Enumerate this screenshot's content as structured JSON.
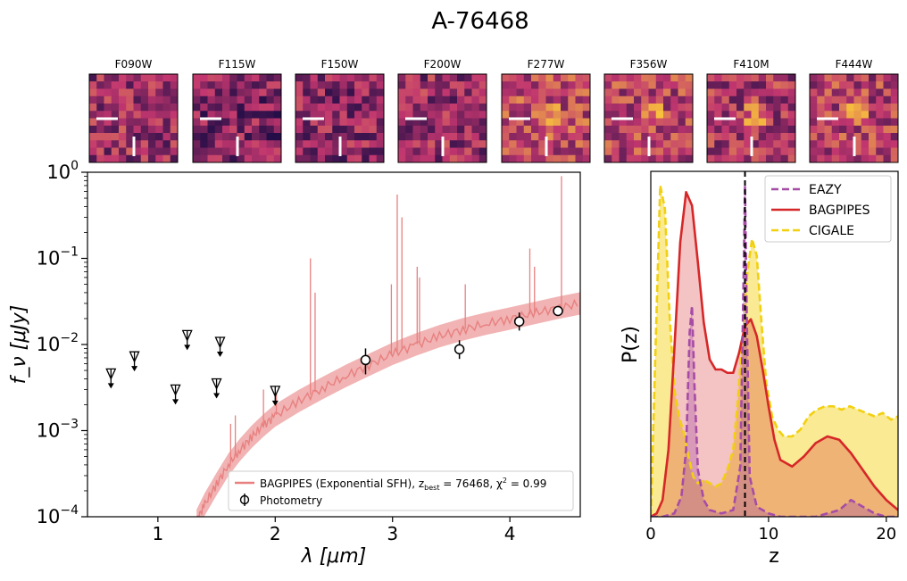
{
  "figure": {
    "title": "A-76468",
    "cutouts": [
      {
        "filter": "F090W",
        "intensity": 0.4
      },
      {
        "filter": "F115W",
        "intensity": 0.3
      },
      {
        "filter": "F150W",
        "intensity": 0.35
      },
      {
        "filter": "F200W",
        "intensity": 0.38
      },
      {
        "filter": "F277W",
        "intensity": 0.55
      },
      {
        "filter": "F356W",
        "intensity": 0.52
      },
      {
        "filter": "F410M",
        "intensity": 0.45
      },
      {
        "filter": "F444W",
        "intensity": 0.5
      }
    ],
    "colors": {
      "bagpipes": "#d62728",
      "bagpipes_sed": "#e88080",
      "eazy": "#a64ca6",
      "cigale": "#f2d00f",
      "cutout_dark": "#1c0b45",
      "cutout_mid": "#c1366f",
      "cutout_bright": "#f9c23c"
    }
  },
  "chart_data": [
    {
      "type": "scatter",
      "panel": "sed",
      "xlabel": "λ [μm]",
      "ylabel": "f_ν [μJy]",
      "xscale": "linear",
      "yscale": "log",
      "xlim": [
        0.4,
        4.6
      ],
      "ylim": [
        0.0001,
        1.0
      ],
      "xticks": [
        1,
        2,
        3,
        4
      ],
      "yticks": [
        0.0001,
        0.001,
        0.01,
        0.1,
        1.0
      ],
      "ytick_labels": [
        {
          "base": "10",
          "exp": "−4"
        },
        {
          "base": "10",
          "exp": "−3"
        },
        {
          "base": "10",
          "exp": "−2"
        },
        {
          "base": "10",
          "exp": "−1"
        },
        {
          "base": "10",
          "exp": "0"
        }
      ],
      "legend_position": "bottom-right",
      "legend": {
        "model_label": "BAGPIPES (Exponential SFH), z",
        "model_sub": "best",
        "model_rest": " = 76468, χ",
        "model_sup": "2",
        "model_end": " = 0.99",
        "points_label": "Photometry"
      },
      "series": [
        {
          "name": "Photometry",
          "kind": "detection",
          "points": [
            {
              "x": 2.77,
              "y": 0.0066,
              "ylo": 0.0045,
              "yhi": 0.009
            },
            {
              "x": 3.57,
              "y": 0.0088,
              "ylo": 0.0068,
              "yhi": 0.0112
            },
            {
              "x": 4.08,
              "y": 0.0185,
              "ylo": 0.0145,
              "yhi": 0.0235
            },
            {
              "x": 4.41,
              "y": 0.0245,
              "ylo": 0.0215,
              "yhi": 0.028
            }
          ]
        },
        {
          "name": "Photometry",
          "kind": "upper_limit",
          "points": [
            {
              "x": 0.6,
              "y": 0.0043
            },
            {
              "x": 0.8,
              "y": 0.0068
            },
            {
              "x": 1.15,
              "y": 0.0028
            },
            {
              "x": 1.25,
              "y": 0.012
            },
            {
              "x": 1.5,
              "y": 0.0033
            },
            {
              "x": 1.53,
              "y": 0.01
            },
            {
              "x": 2.0,
              "y": 0.0027
            }
          ]
        },
        {
          "name": "BAGPIPES (Exponential SFH)",
          "kind": "model_continuum",
          "x": [
            1.33,
            1.4,
            1.5,
            1.6,
            1.7,
            1.8,
            1.9,
            2.0,
            2.2,
            2.4,
            2.6,
            2.8,
            3.0,
            3.2,
            3.4,
            3.6,
            3.8,
            4.0,
            4.2,
            4.4,
            4.6
          ],
          "y": [
            9e-05,
            0.00014,
            0.00024,
            0.0004,
            0.0006,
            0.00085,
            0.00115,
            0.0015,
            0.0022,
            0.0031,
            0.0043,
            0.0058,
            0.0078,
            0.01,
            0.0125,
            0.015,
            0.0175,
            0.02,
            0.023,
            0.0265,
            0.03
          ]
        },
        {
          "name": "BAGPIPES (Exponential SFH)",
          "kind": "emission_lines",
          "x": [
            1.62,
            1.66,
            2.01,
            2.3,
            2.34,
            3.04,
            3.08,
            3.21,
            3.23,
            3.62,
            4.17,
            4.21,
            4.44,
            2.99,
            1.9
          ],
          "y": [
            0.0012,
            0.0015,
            0.003,
            0.1,
            0.04,
            0.55,
            0.3,
            0.08,
            0.06,
            0.05,
            0.13,
            0.08,
            0.9,
            0.05,
            0.003
          ]
        }
      ]
    },
    {
      "type": "area",
      "panel": "pz",
      "xlabel": "z",
      "ylabel": "P(z)",
      "xlim": [
        0,
        21
      ],
      "ylim": [
        0,
        1.0
      ],
      "xticks": [
        0,
        10,
        20
      ],
      "vline_z": 8.0,
      "legend_position": "top-right",
      "series": [
        {
          "name": "EAZY",
          "style": "dashed",
          "x": [
            0,
            1,
            2,
            2.6,
            3.0,
            3.3,
            3.5,
            3.7,
            4.0,
            4.5,
            5,
            6,
            7,
            7.6,
            7.85,
            8.0,
            8.15,
            8.4,
            9,
            10,
            11,
            12,
            14,
            16,
            17,
            18,
            19,
            20,
            21
          ],
          "y": [
            0.0,
            0.0,
            0.01,
            0.06,
            0.2,
            0.55,
            0.63,
            0.4,
            0.14,
            0.05,
            0.02,
            0.01,
            0.02,
            0.15,
            0.65,
            0.99,
            0.6,
            0.12,
            0.03,
            0.01,
            0.0,
            0.0,
            0.0,
            0.02,
            0.05,
            0.03,
            0.01,
            0.0,
            0.0
          ]
        },
        {
          "name": "BAGPIPES",
          "style": "solid",
          "x": [
            0,
            0.5,
            1,
            1.5,
            2,
            2.5,
            3,
            3.5,
            4,
            4.5,
            5,
            5.5,
            6,
            6.5,
            7,
            7.5,
            8,
            8.5,
            9,
            9.5,
            10,
            10.5,
            11,
            12,
            13,
            14,
            15,
            16,
            17,
            18,
            19,
            20,
            21
          ],
          "y": [
            0.0,
            0.01,
            0.05,
            0.2,
            0.5,
            0.82,
            0.97,
            0.93,
            0.76,
            0.58,
            0.47,
            0.44,
            0.44,
            0.43,
            0.43,
            0.49,
            0.57,
            0.59,
            0.54,
            0.44,
            0.33,
            0.23,
            0.17,
            0.15,
            0.18,
            0.22,
            0.24,
            0.23,
            0.19,
            0.14,
            0.09,
            0.05,
            0.02
          ]
        },
        {
          "name": "CIGALE",
          "style": "dashed",
          "x": [
            0,
            0.4,
            0.8,
            1.2,
            1.6,
            2.0,
            2.4,
            2.8,
            3.2,
            3.6,
            4.0,
            4.5,
            5,
            5.5,
            6,
            6.5,
            7,
            7.4,
            7.8,
            8.2,
            8.6,
            9.0,
            9.4,
            9.8,
            10.3,
            10.8,
            11.3,
            12,
            12.7,
            13.4,
            14.1,
            14.8,
            15.5,
            16.2,
            16.9,
            17.6,
            18.3,
            19,
            19.7,
            20.4,
            21
          ],
          "y": [
            0.0,
            0.5,
            0.99,
            0.92,
            0.6,
            0.38,
            0.3,
            0.25,
            0.18,
            0.12,
            0.1,
            0.11,
            0.1,
            0.09,
            0.1,
            0.14,
            0.2,
            0.35,
            0.55,
            0.73,
            0.83,
            0.78,
            0.58,
            0.4,
            0.3,
            0.26,
            0.24,
            0.24,
            0.26,
            0.3,
            0.32,
            0.33,
            0.33,
            0.32,
            0.33,
            0.32,
            0.31,
            0.3,
            0.31,
            0.29,
            0.3
          ]
        }
      ]
    }
  ]
}
